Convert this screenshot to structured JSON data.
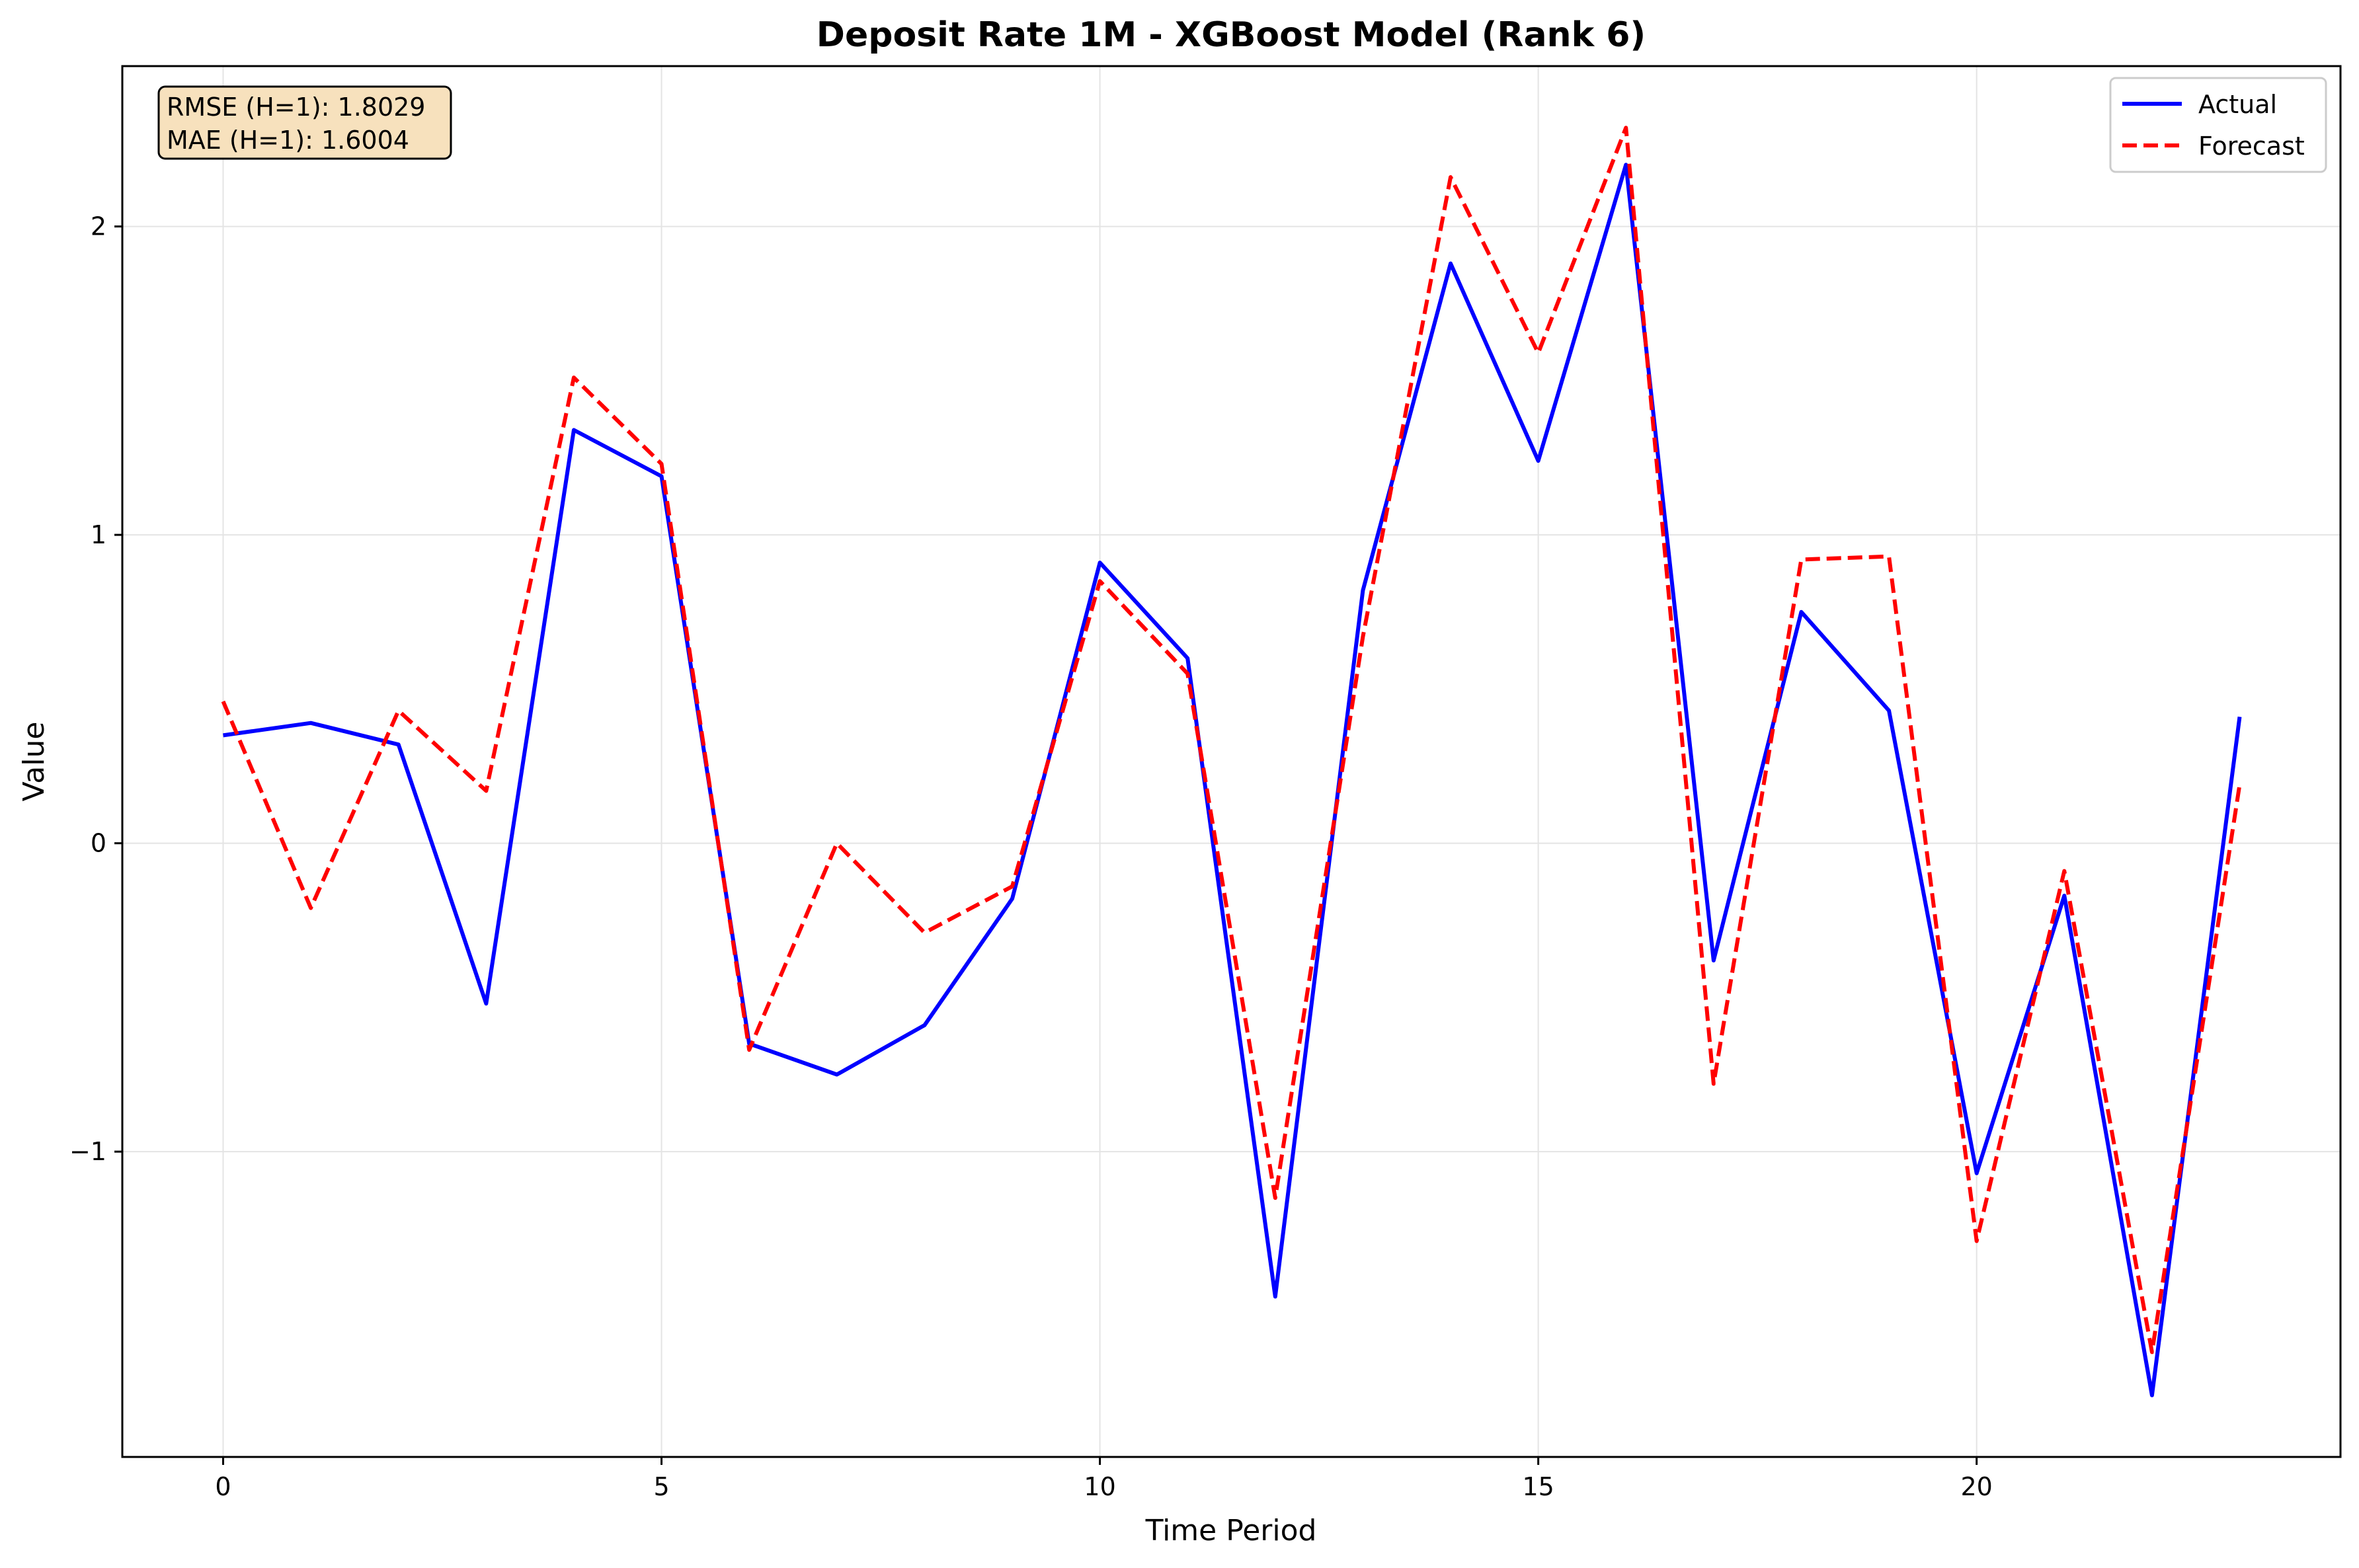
{
  "chart_data": {
    "type": "line",
    "title": "Deposit Rate 1M - XGBoost Model (Rank 6)",
    "xlabel": "Time Period",
    "ylabel": "Value",
    "xlim": [
      -1.15,
      24.15
    ],
    "ylim": [
      -1.99,
      2.52
    ],
    "xticks": [
      0,
      5,
      10,
      15,
      20
    ],
    "yticks": [
      -1,
      0,
      1,
      2
    ],
    "grid": true,
    "legend_position": "top-right",
    "x": [
      0,
      1,
      2,
      3,
      4,
      5,
      6,
      7,
      8,
      9,
      10,
      11,
      12,
      13,
      14,
      15,
      16,
      17,
      18,
      19,
      20,
      21,
      22,
      23
    ],
    "series": [
      {
        "name": "Actual",
        "color": "#0000ff",
        "style": "solid",
        "values": [
          0.35,
          0.39,
          0.32,
          -0.52,
          1.34,
          1.19,
          -0.65,
          -0.75,
          -0.59,
          -0.18,
          0.91,
          0.6,
          -1.47,
          0.82,
          1.88,
          1.24,
          2.2,
          -0.38,
          0.75,
          0.43,
          -1.07,
          -0.17,
          -1.79,
          0.41
        ]
      },
      {
        "name": "Forecast",
        "color": "#ff0000",
        "style": "dashed",
        "values": [
          0.46,
          -0.21,
          0.43,
          0.17,
          1.51,
          1.23,
          -0.67,
          0.0,
          -0.29,
          -0.14,
          0.85,
          0.55,
          -1.15,
          0.67,
          2.16,
          1.59,
          2.32,
          -0.78,
          0.92,
          0.93,
          -1.29,
          -0.09,
          -1.65,
          0.19
        ]
      }
    ],
    "annotation": {
      "lines": [
        "RMSE (H=1): 1.8029",
        "MAE (H=1): 1.6004"
      ],
      "background": "#f7e1bd"
    }
  }
}
